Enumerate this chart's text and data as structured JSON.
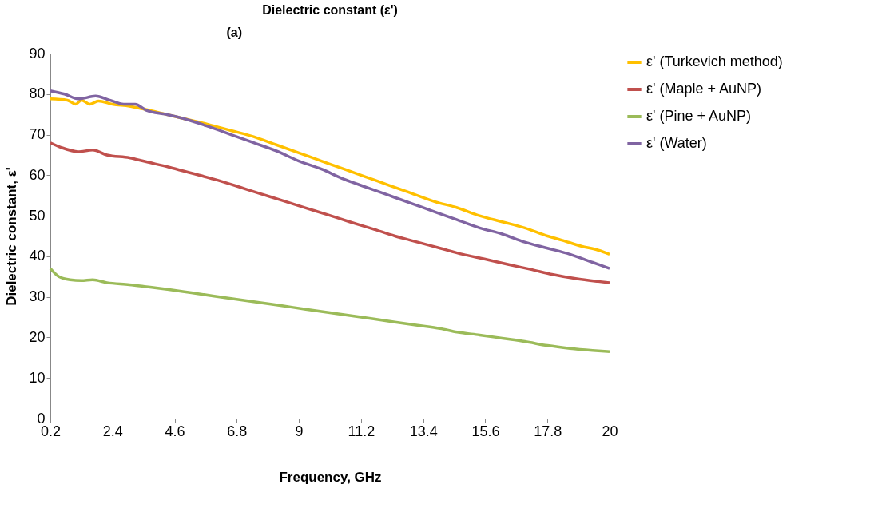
{
  "chart_data": {
    "type": "line",
    "title": "Dielectric constant (ε')",
    "xlabel": "Frequency, GHz",
    "ylabel": "Dielectric constant, ε'",
    "annotations": [
      "(a)"
    ],
    "xlim": [
      0.2,
      20
    ],
    "xticks": [
      0.2,
      2.4,
      4.6,
      6.8,
      9,
      11.2,
      13.4,
      15.6,
      17.8,
      20
    ],
    "ylim": [
      0,
      90
    ],
    "yticks": [
      0,
      10,
      20,
      30,
      40,
      50,
      60,
      70,
      80,
      90
    ],
    "grid": false,
    "legend": "right",
    "marker": "none",
    "line_style": "solid",
    "series": [
      {
        "name": "ε' (Turkevich method)",
        "color": "#ffc000",
        "x": [
          0.2,
          0.8,
          1.1,
          1.3,
          1.6,
          1.9,
          2.4,
          3,
          3.5,
          4.3,
          4.9,
          5.8,
          6.6,
          7.4,
          8.2,
          9,
          9.8,
          10.6,
          11.4,
          12.2,
          13,
          13.8,
          14.6,
          15.4,
          16.2,
          17,
          17.8,
          18.3,
          19,
          19.6,
          20
        ],
        "values": [
          78.8,
          78.5,
          77.5,
          78.5,
          77.5,
          78.3,
          77.5,
          77,
          76.3,
          75,
          74,
          72.5,
          71,
          69.5,
          67.5,
          65.5,
          63.5,
          61.5,
          59.5,
          57.5,
          55.5,
          53.5,
          52,
          50,
          48.5,
          47,
          45,
          44,
          42.5,
          41.5,
          40.5
        ]
      },
      {
        "name": "ε' (Maple + AuNP)",
        "color": "#c0504d",
        "x": [
          0.2,
          0.6,
          1.2,
          1.7,
          2.2,
          3,
          3.6,
          4.4,
          5.2,
          6,
          6.8,
          7.6,
          8.4,
          9.2,
          10,
          10.8,
          11.6,
          12.4,
          13.2,
          14,
          14.8,
          15.6,
          16.4,
          17.2,
          18,
          18.8,
          19.6,
          20
        ],
        "values": [
          68,
          66.8,
          65.8,
          66.2,
          65,
          64.3,
          63.3,
          62,
          60.5,
          59,
          57.3,
          55.5,
          53.8,
          52,
          50.3,
          48.5,
          46.8,
          45,
          43.5,
          42,
          40.5,
          39.3,
          38,
          36.8,
          35.5,
          34.5,
          33.8,
          33.5
        ]
      },
      {
        "name": "ε' (Pine + AuNP)",
        "color": "#9bbb59",
        "x": [
          0.2,
          0.5,
          0.9,
          1.3,
          1.7,
          2.2,
          3,
          3.6,
          4.4,
          5.2,
          6,
          6.8,
          7.6,
          8.4,
          9.2,
          10,
          10.8,
          11.6,
          12.4,
          13.2,
          14,
          14.6,
          15.4,
          16.2,
          17,
          17.8,
          18.6,
          19.4,
          20
        ],
        "values": [
          37,
          35,
          34.2,
          34,
          34.2,
          33.5,
          33,
          32.5,
          31.8,
          31,
          30.2,
          29.4,
          28.6,
          27.8,
          27,
          26.2,
          25.4,
          24.6,
          23.8,
          23,
          22.2,
          21.3,
          20.6,
          19.8,
          19,
          18,
          17.3,
          16.8,
          16.5
        ]
      },
      {
        "name": "ε' (Water)",
        "color": "#8064a2",
        "x": [
          0.2,
          0.7,
          1.2,
          1.8,
          2.3,
          2.8,
          3.2,
          3.6,
          4.3,
          4.9,
          5.8,
          6.6,
          7.4,
          8.2,
          9,
          9.8,
          10.6,
          11.4,
          12.2,
          13,
          13.8,
          14.6,
          15.4,
          16.2,
          17,
          17.8,
          18.6,
          19.4,
          20
        ],
        "values": [
          80.8,
          80,
          78.8,
          79.5,
          78.5,
          77.5,
          77.5,
          76,
          75,
          74,
          72,
          70,
          68,
          66,
          63.5,
          61.5,
          59,
          57,
          55,
          53,
          51,
          49,
          47,
          45.5,
          43.5,
          42,
          40.5,
          38.5,
          37
        ]
      }
    ]
  }
}
